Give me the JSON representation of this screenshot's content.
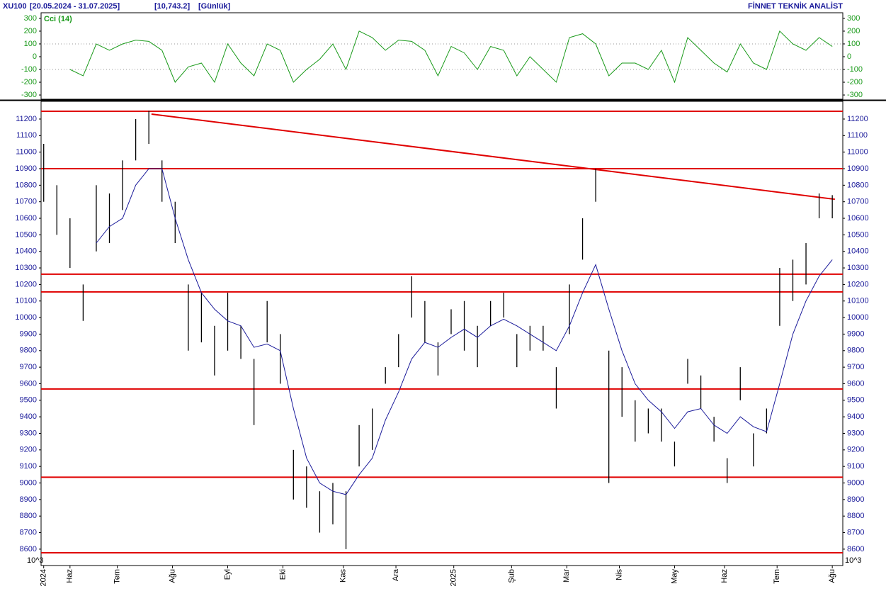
{
  "header": {
    "symbol": "XU100",
    "range": "[20.05.2024 - 31.07.2025]",
    "last": "[10,743.2]",
    "period": "[Günlük]",
    "brand": "FİNNET TEKNİK ANALİST"
  },
  "chart_data": [
    {
      "type": "line",
      "title": "Cci (14)",
      "color": "#1a9a1a",
      "x": [
        0,
        5,
        10,
        15,
        20,
        25,
        30,
        35,
        40,
        45,
        50,
        55,
        60,
        65,
        70,
        75,
        80,
        85,
        90,
        95,
        100,
        105,
        110,
        115,
        120,
        125,
        130,
        135,
        140,
        145,
        150,
        155,
        160,
        165,
        170,
        175,
        180,
        185,
        190,
        195,
        200,
        205,
        210,
        215,
        220,
        225,
        230,
        235,
        240,
        245,
        250,
        255,
        260,
        265,
        270,
        275,
        280,
        285,
        290,
        295,
        300
      ],
      "values": [
        null,
        null,
        -100,
        -150,
        100,
        50,
        100,
        130,
        120,
        50,
        -200,
        -80,
        -50,
        -200,
        100,
        -50,
        -150,
        100,
        50,
        -200,
        -100,
        -20,
        100,
        -100,
        200,
        150,
        50,
        130,
        120,
        50,
        -150,
        80,
        30,
        -100,
        80,
        50,
        -150,
        0,
        -100,
        -200,
        150,
        180,
        100,
        -150,
        -50,
        -50,
        -100,
        50,
        -200,
        150,
        50,
        -50,
        -120,
        100,
        -50,
        -100,
        200,
        100,
        50,
        150,
        80
      ],
      "xlim": [
        -1,
        304
      ],
      "ylim": [
        -333,
        344
      ],
      "yticks": [
        300,
        200,
        100,
        0,
        -100,
        -200,
        -300
      ],
      "reference_lines": [
        100,
        -100
      ]
    },
    {
      "type": "hlbar",
      "color": "#000000",
      "axis_unit": "10^3",
      "x": [
        0,
        5,
        10,
        15,
        20,
        25,
        30,
        35,
        40,
        45,
        50,
        55,
        60,
        65,
        70,
        75,
        80,
        85,
        90,
        95,
        100,
        105,
        110,
        115,
        120,
        125,
        130,
        135,
        140,
        145,
        150,
        155,
        160,
        165,
        170,
        175,
        180,
        185,
        190,
        195,
        200,
        205,
        210,
        215,
        220,
        225,
        230,
        235,
        240,
        245,
        250,
        255,
        260,
        265,
        270,
        275,
        280,
        285,
        290,
        295,
        300
      ],
      "high": [
        11050,
        10800,
        10600,
        10200,
        10800,
        10750,
        10950,
        11200,
        11250,
        10950,
        10700,
        10200,
        10150,
        9950,
        10150,
        9950,
        9750,
        10100,
        9900,
        9200,
        9100,
        8950,
        9000,
        8950,
        9350,
        9450,
        9700,
        9900,
        10250,
        10100,
        9850,
        10050,
        10100,
        9950,
        10100,
        10150,
        9900,
        9950,
        9950,
        9700,
        10200,
        10600,
        10900,
        9800,
        9700,
        9500,
        9450,
        9450,
        9250,
        9750,
        9650,
        9400,
        9150,
        9700,
        9300,
        9450,
        10300,
        10350,
        10450,
        10750,
        10740
      ],
      "low": [
        10700,
        10500,
        10300,
        9980,
        10400,
        10450,
        10650,
        10950,
        11050,
        10700,
        10450,
        9800,
        9850,
        9650,
        9800,
        9750,
        9350,
        9850,
        9600,
        8900,
        8850,
        8700,
        8750,
        8600,
        9100,
        9200,
        9600,
        9700,
        10000,
        9850,
        9650,
        9900,
        9800,
        9700,
        9950,
        10000,
        9700,
        9800,
        9800,
        9450,
        9900,
        10350,
        10700,
        9000,
        9400,
        9250,
        9300,
        9250,
        9100,
        9600,
        9450,
        9250,
        9000,
        9500,
        9100,
        9300,
        9950,
        10100,
        10200,
        10600,
        10600
      ],
      "ma": {
        "color": "#1a1a9a",
        "values": [
          null,
          null,
          null,
          null,
          10450,
          10550,
          10600,
          10800,
          10900,
          10900,
          10600,
          10350,
          10150,
          10050,
          9980,
          9950,
          9820,
          9840,
          9800,
          9450,
          9150,
          9000,
          8950,
          8930,
          9050,
          9150,
          9380,
          9550,
          9750,
          9850,
          9820,
          9880,
          9930,
          9880,
          9950,
          9990,
          9950,
          9900,
          9850,
          9800,
          9950,
          10150,
          10320,
          10050,
          9800,
          9600,
          9500,
          9430,
          9330,
          9430,
          9450,
          9350,
          9300,
          9400,
          9340,
          9310,
          9600,
          9900,
          10100,
          10250,
          10350
        ]
      },
      "levels": {
        "color": "#e00000",
        "values": [
          11247,
          10900,
          10262,
          10155,
          9568,
          9035,
          8578
        ]
      },
      "trendline": {
        "color": "#e00000",
        "x": [
          41,
          301
        ],
        "values": [
          11230,
          10715
        ]
      },
      "xlim": [
        -1,
        304
      ],
      "ylim": [
        8501,
        11307
      ],
      "yticks": [
        8600,
        8700,
        8800,
        8900,
        9000,
        9100,
        9200,
        9300,
        9400,
        9500,
        9600,
        9700,
        9800,
        9900,
        10000,
        10100,
        10200,
        10300,
        10400,
        10500,
        10600,
        10700,
        10800,
        10900,
        11000,
        11100,
        11200
      ],
      "xticks": [
        {
          "value": 0,
          "label": "2024"
        },
        {
          "value": 10,
          "label": "Haz"
        },
        {
          "value": 28,
          "label": "Tem"
        },
        {
          "value": 49,
          "label": "Ağu"
        },
        {
          "value": 70,
          "label": "Eyl"
        },
        {
          "value": 91,
          "label": "Eki"
        },
        {
          "value": 114,
          "label": "Kas"
        },
        {
          "value": 134,
          "label": "Ara"
        },
        {
          "value": 156,
          "label": "2025"
        },
        {
          "value": 178,
          "label": "Şub"
        },
        {
          "value": 199,
          "label": "Mar"
        },
        {
          "value": 219,
          "label": "Nis"
        },
        {
          "value": 240,
          "label": "May"
        },
        {
          "value": 259,
          "label": "Haz"
        },
        {
          "value": 279,
          "label": "Tem"
        },
        {
          "value": 300,
          "label": "Ağu"
        }
      ]
    }
  ]
}
